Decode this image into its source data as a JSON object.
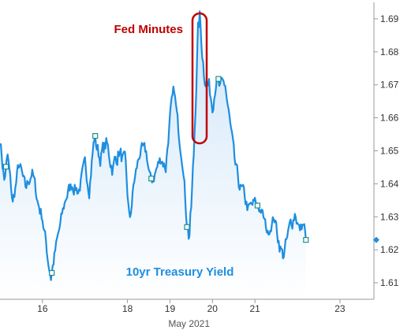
{
  "colors": {
    "line": "#1e8ee0",
    "area_top": "#cfe5f8",
    "area_bottom": "#ffffff",
    "annotation": "#c00000",
    "grid": "#e6e6e6"
  },
  "chart_data": {
    "type": "line",
    "title": "",
    "series": [
      {
        "name": "10yr Treasury Yield",
        "x": [],
        "y": []
      }
    ],
    "xlabel": "May 2021",
    "ylabel": "",
    "xlim": [
      15.0,
      23.8
    ],
    "ylim": [
      1.605,
      1.695
    ],
    "x_ticks": [
      16,
      18,
      19,
      20,
      21,
      23
    ],
    "x_tick_labels": [
      "16",
      "18",
      "19",
      "20",
      "21",
      "23"
    ],
    "y_ticks": [
      1.61,
      1.62,
      1.63,
      1.64,
      1.65,
      1.66,
      1.67,
      1.68,
      1.69
    ],
    "y_tick_labels": [
      "1.61",
      "1.62",
      "1.63",
      "1.64",
      "1.65",
      "1.66",
      "1.67",
      "1.68",
      "1.69"
    ],
    "annotations": [
      {
        "text": "Fed Minutes",
        "x": 19.67,
        "y": 1.69,
        "color": "#c00000"
      },
      {
        "text": "10yr Treasury Yield",
        "x": 18.2,
        "y": 1.612,
        "color": "#1e8ee0"
      }
    ],
    "last_value": 1.623,
    "grid": false,
    "legend": "none"
  }
}
